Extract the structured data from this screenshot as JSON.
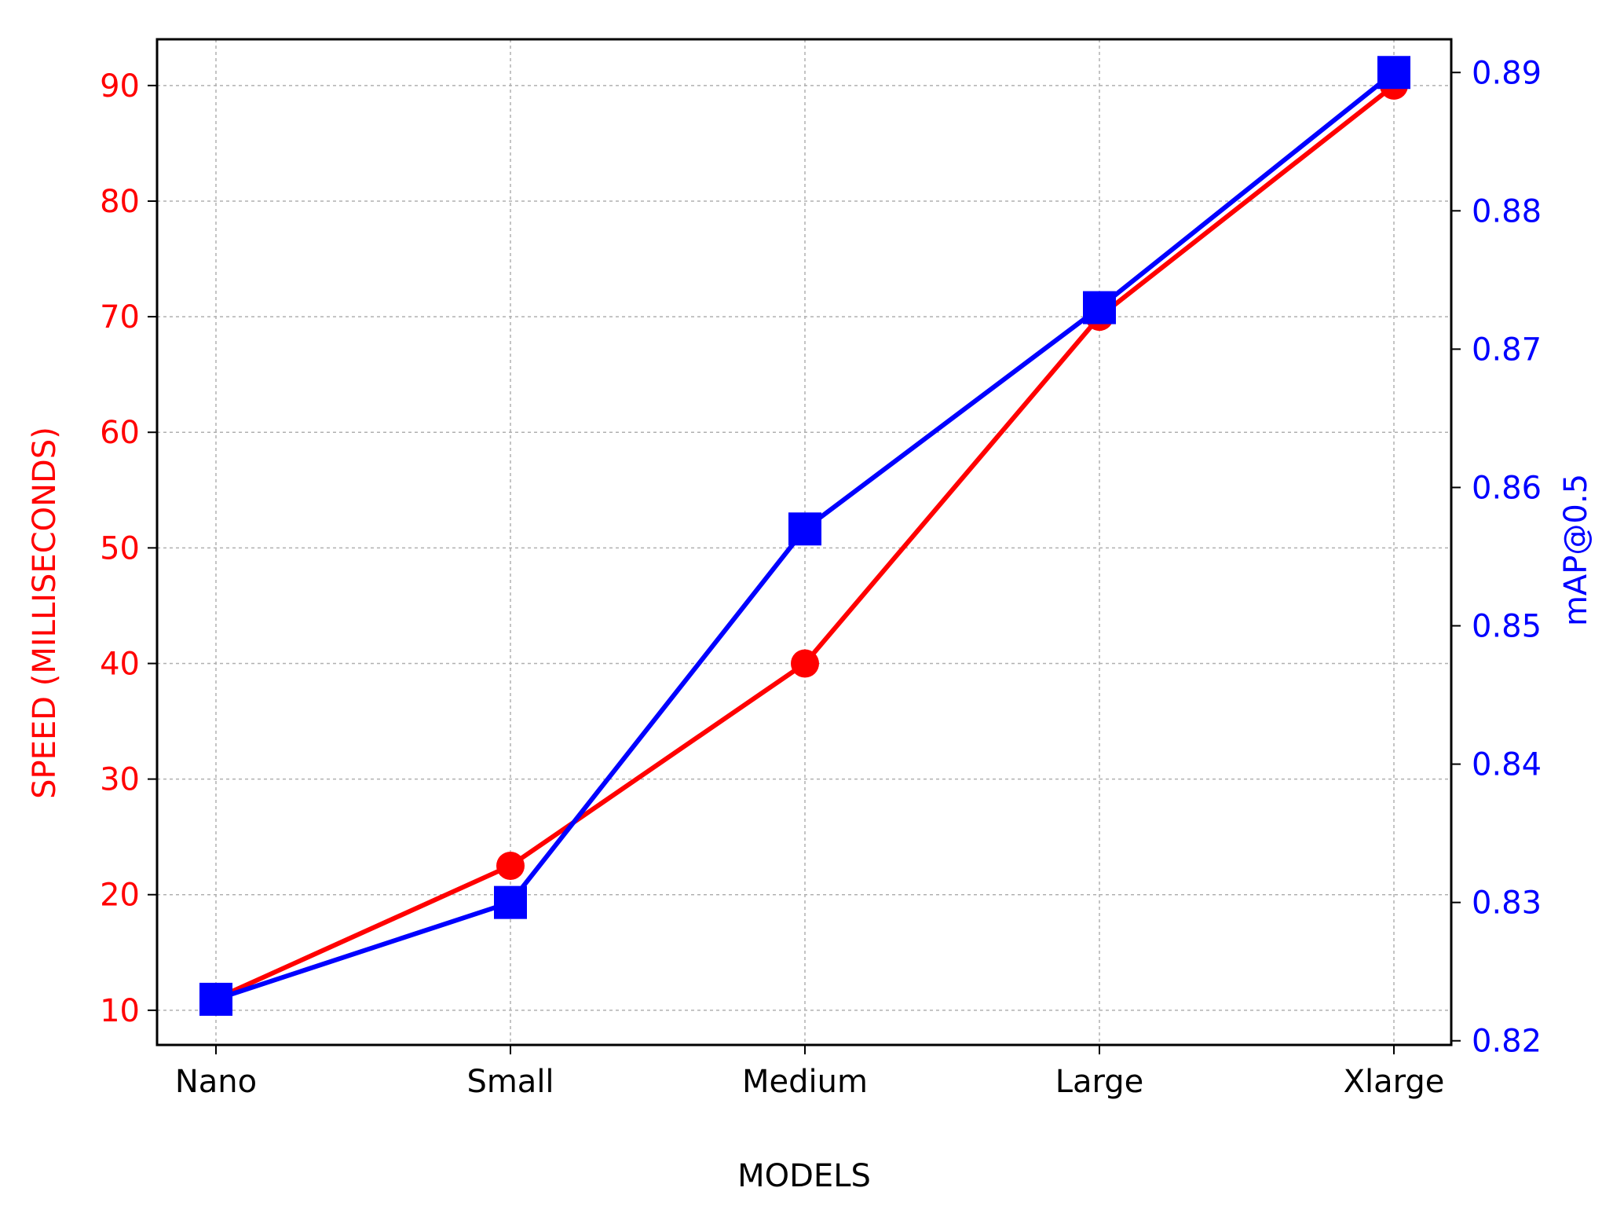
{
  "chart_data": {
    "type": "line",
    "categories": [
      "Nano",
      "Small",
      "Medium",
      "Large",
      "Xlarge"
    ],
    "xlabel": "MODELS",
    "grid": true,
    "y_left": {
      "label": "SPEED (MILLISECONDS)",
      "range": [
        7,
        94
      ],
      "ticks": [
        10,
        20,
        30,
        40,
        50,
        60,
        70,
        80,
        90
      ],
      "tick_labels": [
        "10",
        "20",
        "30",
        "40",
        "50",
        "60",
        "70",
        "80",
        "90"
      ],
      "color": "#ff0000"
    },
    "y_right": {
      "label": "mAP@0.5",
      "range": [
        0.8197,
        0.8924
      ],
      "ticks": [
        0.82,
        0.83,
        0.84,
        0.85,
        0.86,
        0.87,
        0.88,
        0.89
      ],
      "tick_labels": [
        "0.82",
        "0.83",
        "0.84",
        "0.85",
        "0.86",
        "0.87",
        "0.88",
        "0.89"
      ],
      "color": "#0000ff"
    },
    "series": [
      {
        "axis": "left",
        "color": "#ff0000",
        "marker": "circle",
        "values": [
          11,
          22.5,
          40,
          70,
          90
        ]
      },
      {
        "axis": "right",
        "color": "#0000ff",
        "marker": "square",
        "values": [
          0.823,
          0.83,
          0.857,
          0.873,
          0.89
        ]
      }
    ]
  }
}
